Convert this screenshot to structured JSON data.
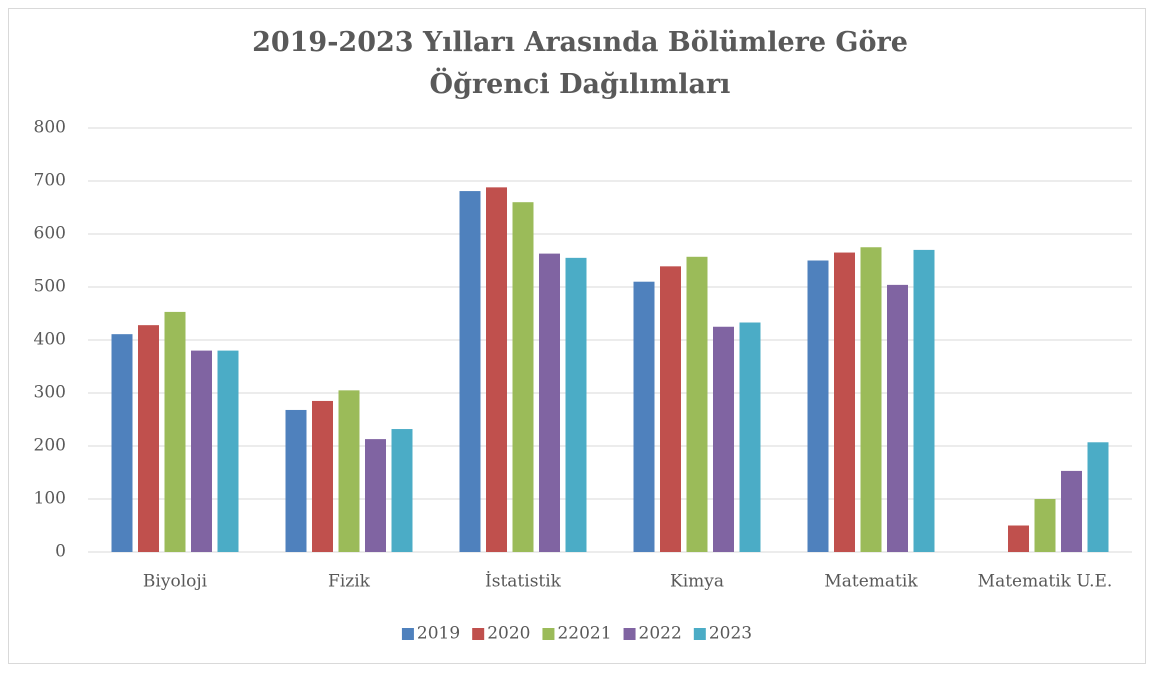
{
  "chart_data": {
    "type": "bar",
    "title": "2019-2023 Yılları Arasında Bölümlere Göre Öğrenci Dağılımları",
    "categories": [
      "Biyoloji",
      "Fizik",
      "İstatistik",
      "Kimya",
      "Matematik",
      "Matematik U.E."
    ],
    "series": [
      {
        "name": "2019",
        "color": "#4f81bd",
        "values": [
          411,
          268,
          681,
          510,
          550,
          null
        ]
      },
      {
        "name": "2020",
        "color": "#c0504d",
        "values": [
          428,
          285,
          688,
          539,
          565,
          50
        ]
      },
      {
        "name": "22021",
        "color": "#9bbb59",
        "values": [
          453,
          305,
          660,
          557,
          575,
          100
        ]
      },
      {
        "name": "2022",
        "color": "#8064a2",
        "values": [
          380,
          213,
          563,
          425,
          504,
          153
        ]
      },
      {
        "name": "2023",
        "color": "#4bacc6",
        "values": [
          380,
          232,
          555,
          433,
          570,
          207
        ]
      }
    ],
    "ylim": [
      0,
      800
    ],
    "yticks": [
      0,
      100,
      200,
      300,
      400,
      500,
      600,
      700,
      800
    ],
    "grid": true,
    "legend": "bottom"
  }
}
